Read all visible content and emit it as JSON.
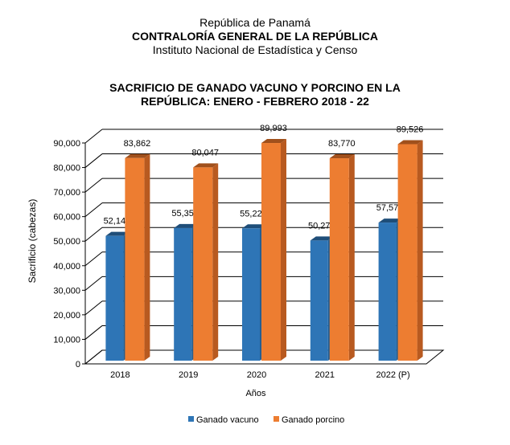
{
  "header": {
    "line1": "República de Panamá",
    "line2": "CONTRALORÍA GENERAL DE LA REPÚBLICA",
    "line3": "Instituto Nacional de Estadística y Censo"
  },
  "chart_data": {
    "type": "bar",
    "title_line1": "SACRIFICIO DE GANADO VACUNO Y PORCINO EN LA",
    "title_line2": "REPÚBLICA: ENERO - FEBRERO 2018 - 22",
    "xlabel": "Años",
    "ylabel": "Sacrificio (cabezas)",
    "ylim": [
      0,
      90000
    ],
    "yticks": [
      0,
      10000,
      20000,
      30000,
      40000,
      50000,
      60000,
      70000,
      80000,
      90000
    ],
    "ytick_labels": [
      "0",
      "10,000",
      "20,000",
      "30,000",
      "40,000",
      "50,000",
      "60,000",
      "70,000",
      "80,000",
      "90,000"
    ],
    "categories": [
      "2018",
      "2019",
      "2020",
      "2021",
      "2022 (P)"
    ],
    "series": [
      {
        "name": "Ganado vacuno",
        "color": "#2E75B6",
        "values": [
          52140,
          55356,
          55220,
          50275,
          57574
        ],
        "labels": [
          "52,140",
          "55,356",
          "55,220",
          "50,275",
          "57,574"
        ]
      },
      {
        "name": "Ganado porcino",
        "color": "#ED7D31",
        "values": [
          83862,
          80047,
          89993,
          83770,
          89526
        ],
        "labels": [
          "83,862",
          "80,047",
          "89,993",
          "83,770",
          "89,526"
        ]
      }
    ],
    "grid": true,
    "legend_position": "bottom"
  }
}
